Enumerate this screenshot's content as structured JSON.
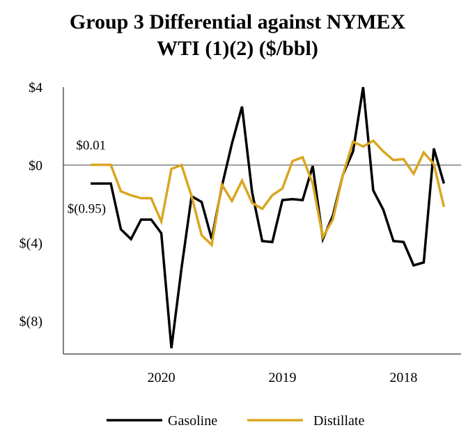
{
  "chart_data": {
    "type": "line",
    "title": [
      "Group 3 Differential against NYMEX",
      "WTI (1)(2) ($/bbl)"
    ],
    "xlabel": "",
    "ylabel": "",
    "ylim": [
      -9.7,
      4
    ],
    "y_ticks": [
      {
        "value": 4,
        "label": "$4"
      },
      {
        "value": 0,
        "label": "$0"
      },
      {
        "value": -4,
        "label": "$(4)"
      },
      {
        "value": -8,
        "label": "$(8)"
      }
    ],
    "x_year_labels": [
      {
        "value": 7,
        "label": "2020"
      },
      {
        "value": 19,
        "label": "2019"
      },
      {
        "value": 31,
        "label": "2018"
      }
    ],
    "x_range": [
      -2.7,
      36.7
    ],
    "zero_line": true,
    "series": [
      {
        "name": "Gasoline",
        "color": "#000000",
        "values": [
          -0.95,
          -0.95,
          -0.95,
          -3.3,
          -3.8,
          -2.8,
          -2.8,
          -3.5,
          -9.4,
          -5.3,
          -1.6,
          -1.9,
          -3.8,
          -1.1,
          1.1,
          3.0,
          -1.4,
          -3.9,
          -3.95,
          -1.8,
          -1.75,
          -1.8,
          -0.05,
          -3.8,
          -2.6,
          -0.5,
          0.7,
          4.0,
          -1.3,
          -2.3,
          -3.9,
          -3.95,
          -5.15,
          -5.0,
          0.85,
          -0.95
        ]
      },
      {
        "name": "Distillate",
        "color": "#DAA520",
        "values": [
          0.01,
          0.01,
          0.01,
          -1.35,
          -1.55,
          -1.7,
          -1.7,
          -2.9,
          -0.2,
          0.0,
          -1.6,
          -3.6,
          -4.1,
          -1.0,
          -1.85,
          -0.8,
          -1.95,
          -2.25,
          -1.55,
          -1.2,
          0.2,
          0.4,
          -0.95,
          -3.7,
          -2.8,
          -0.5,
          1.2,
          0.95,
          1.25,
          0.7,
          0.25,
          0.3,
          -0.45,
          0.65,
          0.05,
          -2.15
        ]
      }
    ],
    "annotations": [
      {
        "text": "$0.01",
        "series": "Distillate",
        "index": 0
      },
      {
        "text": "$(0.95)",
        "series": "Gasoline",
        "index": 0
      }
    ],
    "legend_position": "bottom-center"
  }
}
